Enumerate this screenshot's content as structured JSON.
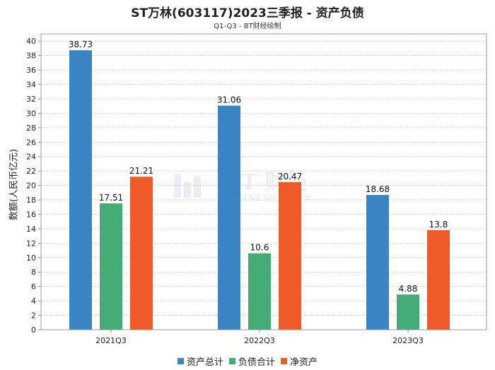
{
  "title": "ST万林(603117)2023三季报 - 资产负债",
  "subtitle": "Q1-Q3 - BT财经绘制",
  "chart_data": {
    "type": "bar",
    "categories": [
      "2021Q3",
      "2022Q3",
      "2023Q3"
    ],
    "series": [
      {
        "name": "资产总计",
        "values": [
          38.73,
          31.06,
          18.68
        ],
        "color": "#3a84c4"
      },
      {
        "name": "负债合计",
        "values": [
          17.51,
          10.6,
          4.88
        ],
        "color": "#45ab77"
      },
      {
        "name": "净资产",
        "values": [
          21.21,
          20.47,
          13.8
        ],
        "color": "#f05a28"
      }
    ],
    "value_labels": [
      [
        "38.73",
        "31.06",
        "18.68"
      ],
      [
        "17.51",
        "10.6",
        "4.88"
      ],
      [
        "21.21",
        "20.47",
        "13.8"
      ]
    ],
    "ylabel": "数额(人民币亿元)",
    "ylim": [
      0,
      41
    ],
    "yticks": [
      0,
      2,
      4,
      6,
      8,
      10,
      12,
      14,
      16,
      18,
      20,
      22,
      24,
      26,
      28,
      30,
      32,
      34,
      36,
      38,
      40
    ],
    "grid": true,
    "legend": "bottom"
  },
  "watermark": {
    "main": "BT 财经",
    "sub": "BUSINESSTIMES"
  }
}
